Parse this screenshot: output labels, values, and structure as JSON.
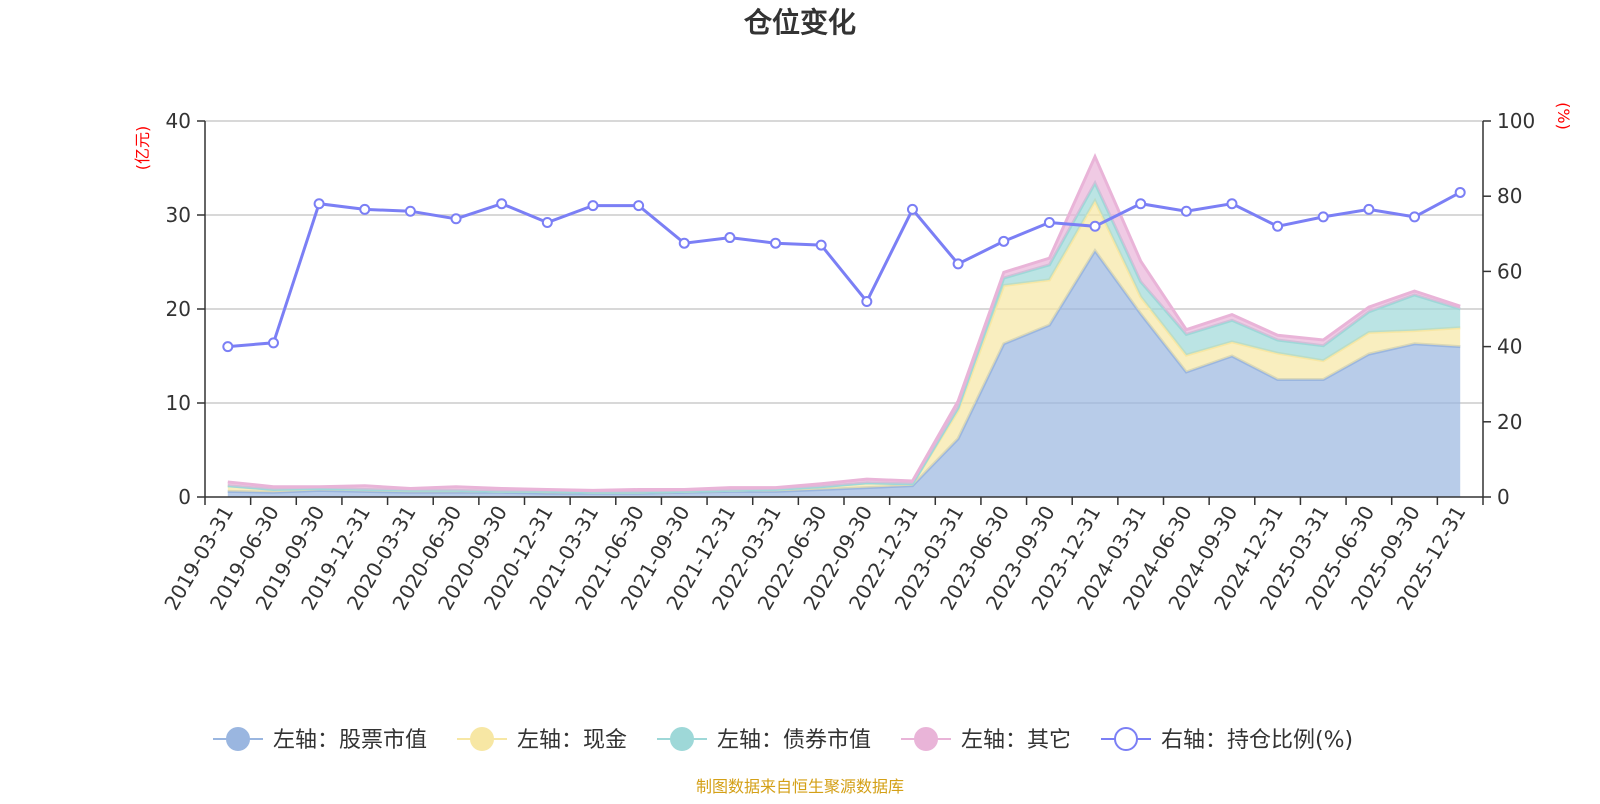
{
  "chart_data": {
    "type": "area",
    "title": "仓位变化",
    "source_note": "制图数据来自恒生聚源数据库",
    "left_axis": {
      "unit_label": "(亿元)",
      "ticks": [
        "0",
        "10",
        "20",
        "30",
        "40"
      ],
      "range": [
        0,
        40
      ]
    },
    "right_axis": {
      "unit_label": "(%)",
      "ticks": [
        "0",
        "20",
        "40",
        "60",
        "80",
        "100"
      ],
      "range": [
        0,
        100
      ]
    },
    "categories": [
      "2019-03-31",
      "2019-06-30",
      "2019-09-30",
      "2019-12-31",
      "2020-03-31",
      "2020-06-30",
      "2020-09-30",
      "2020-12-31",
      "2021-03-31",
      "2021-06-30",
      "2021-09-30",
      "2021-12-31",
      "2022-03-31",
      "2022-06-30",
      "2022-09-30",
      "2022-12-31",
      "2023-03-31",
      "2023-06-30",
      "2023-09-30",
      "2023-12-31",
      "2024-03-31",
      "2024-06-30",
      "2024-09-30",
      "2024-12-31",
      "2025-03-31",
      "2025-06-30",
      "2025-09-30",
      "2025-12-31"
    ],
    "stacked_series": [
      {
        "name": "左轴：股票市值",
        "color": "#9ab6e0",
        "values": [
          0.6,
          0.5,
          0.7,
          0.6,
          0.5,
          0.5,
          0.5,
          0.4,
          0.4,
          0.4,
          0.5,
          0.6,
          0.6,
          0.8,
          1.0,
          1.2,
          6.2,
          16.3,
          18.3,
          26.2,
          19.5,
          13.3,
          15.0,
          12.5,
          12.5,
          15.2,
          16.3,
          16.0
        ]
      },
      {
        "name": "左轴：现金",
        "color": "#f7e7a4",
        "values": [
          0.6,
          0.3,
          0.2,
          0.2,
          0.2,
          0.2,
          0.1,
          0.2,
          0.1,
          0.1,
          0.1,
          0.1,
          0.2,
          0.3,
          0.5,
          0.2,
          3.0,
          6.2,
          4.8,
          5.3,
          1.8,
          1.8,
          1.5,
          2.8,
          2.0,
          2.3,
          1.4,
          2.0
        ]
      },
      {
        "name": "左轴：债券市值",
        "color": "#9ed8d8",
        "values": [
          0.0,
          0.0,
          0.0,
          0.0,
          0.0,
          0.0,
          0.0,
          0.0,
          0.0,
          0.0,
          0.0,
          0.0,
          0.0,
          0.0,
          0.0,
          0.0,
          0.3,
          0.8,
          1.6,
          1.9,
          1.6,
          2.2,
          2.3,
          1.4,
          1.6,
          2.2,
          3.8,
          2.0
        ]
      },
      {
        "name": "左轴：其它",
        "color": "#e9b4d8",
        "values": [
          0.4,
          0.3,
          0.2,
          0.4,
          0.2,
          0.4,
          0.3,
          0.2,
          0.2,
          0.3,
          0.2,
          0.3,
          0.2,
          0.3,
          0.4,
          0.3,
          0.7,
          0.6,
          0.7,
          2.8,
          2.2,
          0.5,
          0.6,
          0.5,
          0.6,
          0.5,
          0.4,
          0.3
        ]
      }
    ],
    "line_series": {
      "name": "右轴：持仓比例(%)",
      "color": "#7b7ff5",
      "values": [
        40,
        41,
        78,
        76.5,
        76,
        74,
        78,
        73,
        77.5,
        77.5,
        67.5,
        69,
        67.5,
        67,
        52,
        76.5,
        62,
        68,
        73,
        72,
        78,
        76,
        78,
        72,
        74.5,
        76.5,
        74.5,
        81
      ]
    }
  }
}
